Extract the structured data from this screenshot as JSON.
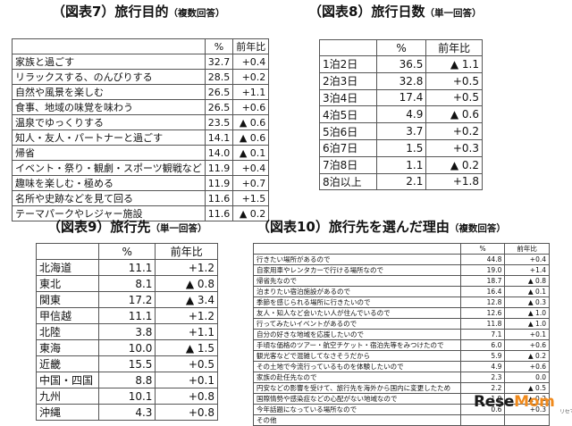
{
  "t7": {
    "title": "（図表7）旅行目的",
    "sub": "（複数回答）",
    "h_pct": "%",
    "h_yoy": "前年比",
    "rows": [
      [
        "家族と過ごす",
        "32.7",
        "+0.4"
      ],
      [
        "リラックスする、のんびりする",
        "28.5",
        "+0.2"
      ],
      [
        "自然や風景を楽しむ",
        "26.5",
        "+1.1"
      ],
      [
        "食事、地域の味覚を味わう",
        "26.5",
        "+0.6"
      ],
      [
        "温泉でゆっくりする",
        "23.5",
        "▲ 0.6"
      ],
      [
        "知人・友人・パートナーと過ごす",
        "14.1",
        "▲ 0.6"
      ],
      [
        "帰省",
        "14.0",
        "▲ 0.1"
      ],
      [
        "イベント・祭り・観劇・スポーツ観戦など",
        "11.9",
        "+0.4"
      ],
      [
        "趣味を楽しむ・極める",
        "11.9",
        "+0.7"
      ],
      [
        "名所や史跡などを見て回る",
        "11.6",
        "+1.5"
      ],
      [
        "テーマパークやレジャー施設",
        "11.6",
        "▲ 0.2"
      ]
    ]
  },
  "t8": {
    "title": "（図表8）旅行日数",
    "sub": "（単一回答）",
    "h_pct": "%",
    "h_yoy": "前年比",
    "rows": [
      [
        "1泊2日",
        "36.5",
        "▲ 1.1"
      ],
      [
        "2泊3日",
        "32.8",
        "+0.5"
      ],
      [
        "3泊4日",
        "17.4",
        "+0.5"
      ],
      [
        "4泊5日",
        "4.9",
        "▲ 0.6"
      ],
      [
        "5泊6日",
        "3.7",
        "+0.2"
      ],
      [
        "6泊7日",
        "1.5",
        "+0.3"
      ],
      [
        "7泊8日",
        "1.1",
        "▲ 0.2"
      ],
      [
        "8泊以上",
        "2.1",
        "+1.8"
      ]
    ]
  },
  "t9": {
    "title": "（図表9）旅行先",
    "sub": "（単一回答）",
    "h_pct": "%",
    "h_yoy": "前年比",
    "rows": [
      [
        "北海道",
        "11.1",
        "+1.2"
      ],
      [
        "東北",
        "8.1",
        "▲ 0.8"
      ],
      [
        "関東",
        "17.2",
        "▲ 3.4"
      ],
      [
        "甲信越",
        "11.1",
        "+1.2"
      ],
      [
        "北陸",
        "3.8",
        "+1.1"
      ],
      [
        "東海",
        "10.0",
        "▲ 1.5"
      ],
      [
        "近畿",
        "15.5",
        "+0.5"
      ],
      [
        "中国・四国",
        "8.8",
        "+0.1"
      ],
      [
        "九州",
        "10.1",
        "+0.8"
      ],
      [
        "沖縄",
        "4.3",
        "+0.8"
      ]
    ]
  },
  "t10": {
    "title": "（図表10）旅行先を選んだ理由",
    "sub": "（複数回答）",
    "h_pct": "%",
    "h_yoy": "前年比",
    "rows": [
      [
        "行きたい場所があるので",
        "44.8",
        "+0.4"
      ],
      [
        "自家用車やレンタカーで行ける場所なので",
        "19.0",
        "+1.4"
      ],
      [
        "帰省先なので",
        "18.7",
        "▲ 0.8"
      ],
      [
        "泊まりたい宿泊施設があるので",
        "16.4",
        "▲ 0.1"
      ],
      [
        "季節を感じられる場所に行きたいので",
        "12.8",
        "▲ 0.3"
      ],
      [
        "友人・知人など会いたい人が住んでいるので",
        "12.6",
        "▲ 1.0"
      ],
      [
        "行ってみたいイベントがあるので",
        "11.8",
        "▲ 1.0"
      ],
      [
        "自分の好きな地域を応援したいので",
        "7.1",
        "+0.1"
      ],
      [
        "手頃な価格のツアー・航空チケット・宿泊先等をみつけたので",
        "6.0",
        "+0.6"
      ],
      [
        "観光客などで混雑してなさそうだから",
        "5.9",
        "▲ 0.2"
      ],
      [
        "その土地で今流行っているものを体験したいので",
        "4.9",
        "+0.6"
      ],
      [
        "家族の赴任先なので",
        "2.3",
        "0.0"
      ],
      [
        "円安などの影響を受けて、旅行先を海外から国内に変更したため",
        "2.2",
        "▲ 0.5"
      ],
      [
        "国際情勢や感染症などの心配がない地域なので",
        "1.9",
        "▲ 0.2"
      ],
      [
        "今年話題になっている場所なので",
        "0.6",
        "+0.3"
      ],
      [
        "その他",
        "",
        ""
      ]
    ]
  },
  "logo": {
    "text_a": "Rese",
    "text_b": "Mom",
    "small": "リセマム"
  }
}
